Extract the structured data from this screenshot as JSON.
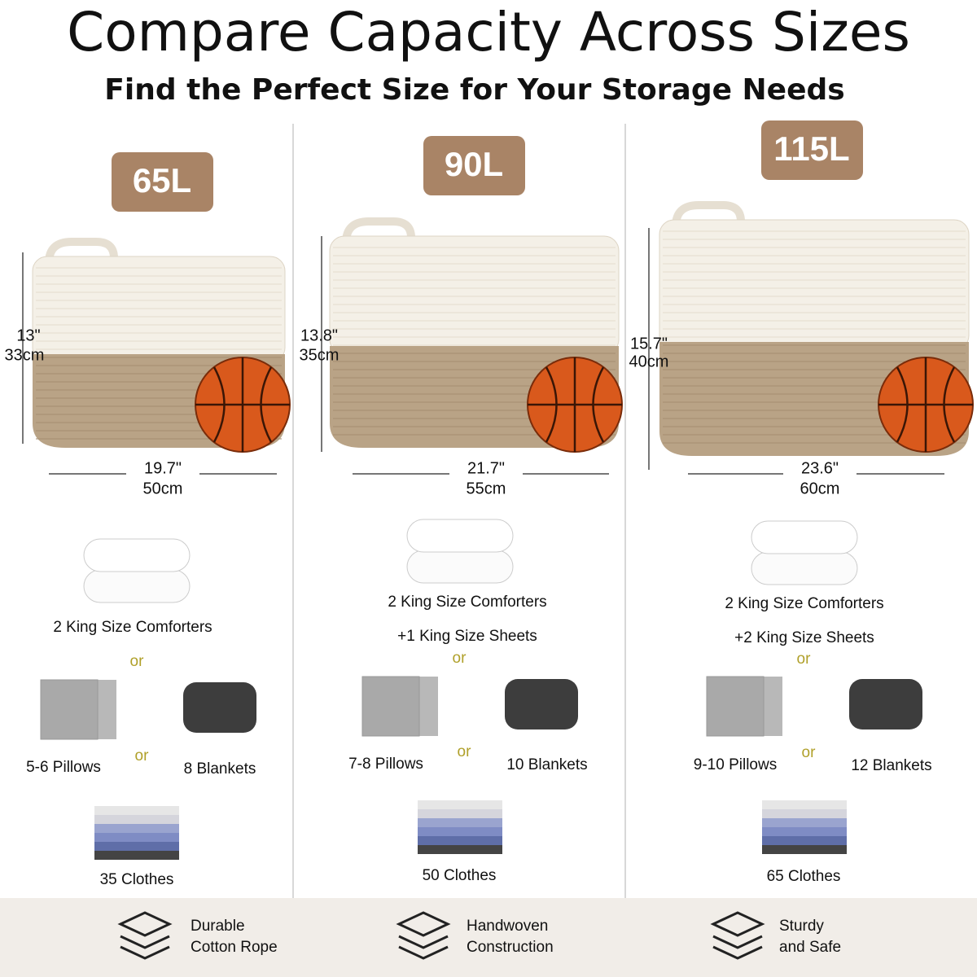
{
  "header": {
    "title": "Compare Capacity Across Sizes",
    "subtitle": "Find the Perfect Size for Your Storage Needs"
  },
  "columns": [
    {
      "capacity": "65L",
      "height_in": "13\"",
      "height_cm": "33cm",
      "width_in": "19.7\"",
      "width_cm": "50cm",
      "comforters": "2 King Size Comforters",
      "or_top": "or",
      "pillows": "5-6 Pillows",
      "or_middle": "or",
      "blankets": "8 Blankets",
      "clothes": "35 Clothes"
    },
    {
      "capacity": "90L",
      "height_in": "13.8\"",
      "height_cm": "35cm",
      "width_in": "21.7\"",
      "width_cm": "55cm",
      "comforters": "2 King Size Comforters",
      "sheets": "+1 King Size Sheets",
      "or_top": "or",
      "pillows": "7-8 Pillows",
      "or_middle": "or",
      "blankets": "10 Blankets",
      "clothes": "50 Clothes"
    },
    {
      "capacity": "115L",
      "height_in": "15.7\"",
      "height_cm": "40cm",
      "width_in": "23.6\"",
      "width_cm": "60cm",
      "comforters": "2 King Size Comforters",
      "sheets": "+2 King Size Sheets",
      "or_top": "or",
      "pillows": "9-10 Pillows",
      "or_middle": "or",
      "blankets": "12 Blankets",
      "clothes": "65 Clothes"
    }
  ],
  "features": [
    {
      "line1": "Durable",
      "line2": "Cotton Rope"
    },
    {
      "line1": "Handwoven",
      "line2": "Construction"
    },
    {
      "line1": "Sturdy",
      "line2": "and Safe"
    }
  ]
}
